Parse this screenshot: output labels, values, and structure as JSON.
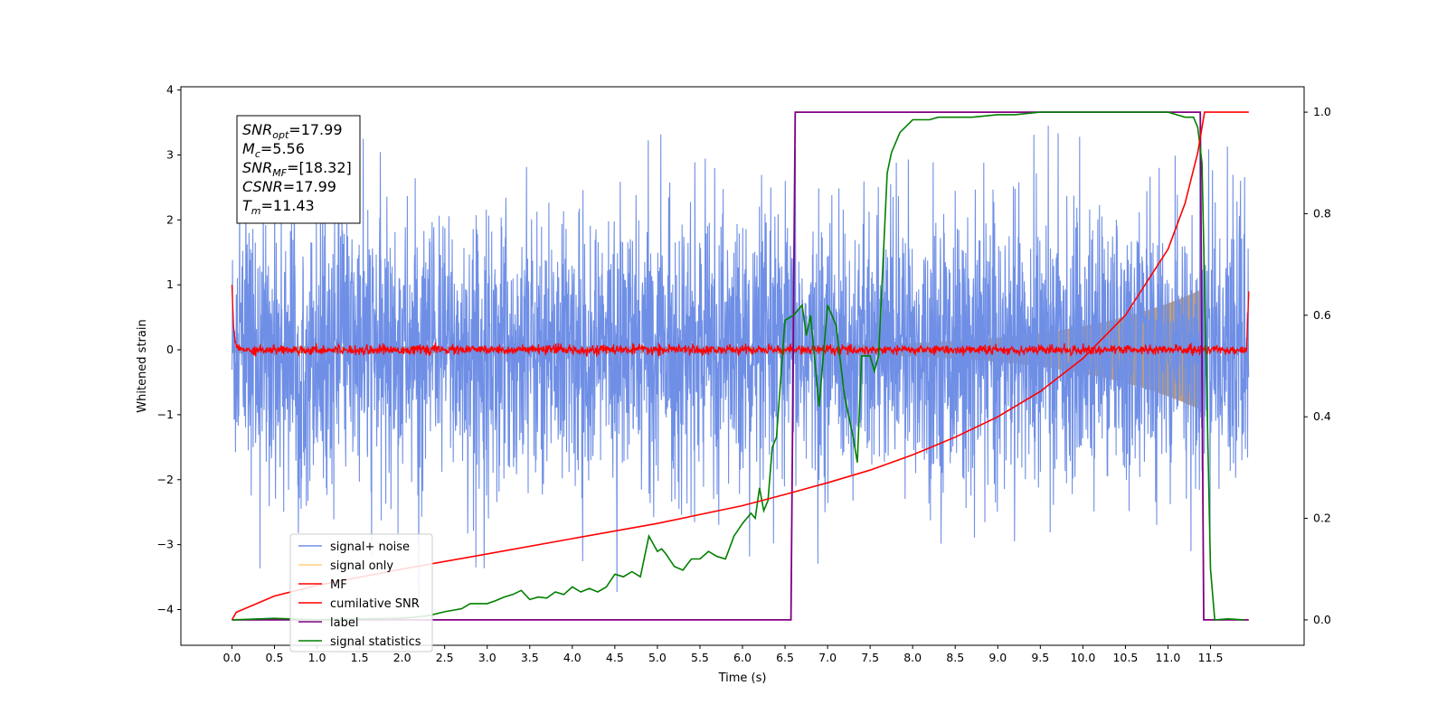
{
  "chart_data": {
    "type": "line",
    "xlabel": "Time (s)",
    "ylabel": "Whitened strain",
    "xlim": [
      -0.6,
      12.6
    ],
    "ylim": [
      -4.55,
      4.05
    ],
    "y2lim": [
      -0.05,
      1.05
    ],
    "xticks": [
      0.0,
      0.5,
      1.0,
      1.5,
      2.0,
      2.5,
      3.0,
      3.5,
      4.0,
      4.5,
      5.0,
      5.5,
      6.0,
      6.5,
      7.0,
      7.5,
      8.0,
      8.5,
      9.0,
      9.5,
      10.0,
      10.5,
      11.0,
      11.5
    ],
    "xtick_labels": [
      "0.0",
      "0.5",
      "1.0",
      "1.5",
      "2.0",
      "2.5",
      "3.0",
      "3.5",
      "4.0",
      "4.5",
      "5.0",
      "5.5",
      "6.0",
      "6.5",
      "7.0",
      "7.5",
      "8.0",
      "8.5",
      "9.0",
      "9.5",
      "10.0",
      "10.5",
      "11.0",
      "11.5"
    ],
    "yticks": [
      -4,
      -3,
      -2,
      -1,
      0,
      1,
      2,
      3,
      4
    ],
    "ytick_labels": [
      "−4",
      "−3",
      "−2",
      "−1",
      "0",
      "1",
      "2",
      "3",
      "4"
    ],
    "y2ticks": [
      0.0,
      0.2,
      0.4,
      0.6,
      0.8,
      1.0
    ],
    "y2tick_labels": [
      "0.0",
      "0.2",
      "0.4",
      "0.6",
      "0.8",
      "1.0"
    ],
    "legend_position": "lower-left",
    "info_box": [
      {
        "base": "SNR",
        "sub": "opt",
        "rest": "=17.99"
      },
      {
        "base": "M",
        "sub": "c",
        "rest": "=5.56"
      },
      {
        "base": "SNR",
        "sub": "MF",
        "rest": "=[18.32]"
      },
      {
        "base": "CSNR",
        "sub": "",
        "rest": "=17.99"
      },
      {
        "base": "T",
        "sub": "m",
        "rest": "=11.43"
      }
    ],
    "noise_amplitude": {
      "typical": 1.6,
      "peak": 3.4
    },
    "series": [
      {
        "name": "signal+ noise",
        "color": "#6f8fe6",
        "axis": "left",
        "description": "whitened noise with embedded signal"
      },
      {
        "name": "signal only",
        "color": "#c29a6b",
        "axis": "left",
        "envelope": {
          "t_start": 0.0,
          "t_merger": 11.43,
          "t_end": 11.95,
          "amp_start": 0.05,
          "amp_merger": 0.95
        }
      },
      {
        "name": "MF",
        "color": "#ff0000",
        "axis": "left",
        "level": 0.0,
        "spread": 0.09,
        "edge_values": [
          1.0,
          0.9
        ]
      },
      {
        "name": "cumilative SNR",
        "color": "#ff0000",
        "axis": "right",
        "x": [
          0.0,
          0.05,
          0.5,
          1.0,
          2.0,
          3.0,
          4.0,
          5.0,
          6.0,
          6.5,
          7.0,
          7.5,
          8.0,
          8.5,
          9.0,
          9.5,
          10.0,
          10.5,
          11.0,
          11.2,
          11.35,
          11.43,
          11.6,
          11.95
        ],
        "y": [
          0.0,
          0.015,
          0.047,
          0.068,
          0.1,
          0.13,
          0.16,
          0.19,
          0.225,
          0.247,
          0.27,
          0.295,
          0.325,
          0.36,
          0.4,
          0.45,
          0.515,
          0.6,
          0.73,
          0.82,
          0.92,
          1.0,
          1.0,
          1.0
        ]
      },
      {
        "name": "label",
        "color": "#800080",
        "axis": "right",
        "x": [
          0.0,
          6.57,
          6.62,
          11.38,
          11.42,
          11.95
        ],
        "y": [
          0.0,
          0.0,
          1.0,
          1.0,
          0.0,
          0.0
        ]
      },
      {
        "name": "signal statistics",
        "color": "#008000",
        "axis": "right",
        "x": [
          0.0,
          0.5,
          1.0,
          1.5,
          2.0,
          2.3,
          2.5,
          2.7,
          2.8,
          3.0,
          3.1,
          3.2,
          3.3,
          3.4,
          3.5,
          3.6,
          3.7,
          3.8,
          3.9,
          4.0,
          4.1,
          4.2,
          4.3,
          4.4,
          4.5,
          4.6,
          4.7,
          4.8,
          4.9,
          5.0,
          5.05,
          5.1,
          5.2,
          5.3,
          5.4,
          5.5,
          5.6,
          5.7,
          5.8,
          5.9,
          6.0,
          6.1,
          6.15,
          6.2,
          6.25,
          6.3,
          6.35,
          6.4,
          6.5,
          6.6,
          6.7,
          6.75,
          6.8,
          6.9,
          7.0,
          7.1,
          7.2,
          7.3,
          7.35,
          7.4,
          7.5,
          7.55,
          7.6,
          7.65,
          7.7,
          7.75,
          7.85,
          8.0,
          8.1,
          8.2,
          8.3,
          8.5,
          8.7,
          9.0,
          9.2,
          9.5,
          10.0,
          10.5,
          11.0,
          11.1,
          11.2,
          11.3,
          11.35,
          11.4,
          11.45,
          11.5,
          11.55,
          11.7,
          11.9
        ],
        "y": [
          0.0,
          0.003,
          0.0,
          0.002,
          0.003,
          0.008,
          0.016,
          0.022,
          0.032,
          0.032,
          0.038,
          0.045,
          0.05,
          0.058,
          0.04,
          0.045,
          0.043,
          0.055,
          0.05,
          0.065,
          0.055,
          0.062,
          0.055,
          0.065,
          0.09,
          0.085,
          0.095,
          0.085,
          0.165,
          0.135,
          0.14,
          0.13,
          0.105,
          0.098,
          0.12,
          0.12,
          0.135,
          0.125,
          0.12,
          0.165,
          0.19,
          0.21,
          0.2,
          0.26,
          0.215,
          0.235,
          0.34,
          0.36,
          0.59,
          0.6,
          0.62,
          0.56,
          0.6,
          0.42,
          0.62,
          0.58,
          0.44,
          0.36,
          0.31,
          0.52,
          0.52,
          0.49,
          0.52,
          0.7,
          0.88,
          0.92,
          0.96,
          0.985,
          0.985,
          0.985,
          0.99,
          0.99,
          0.99,
          0.995,
          0.995,
          1.0,
          1.0,
          1.0,
          1.0,
          0.995,
          0.99,
          0.99,
          0.97,
          0.9,
          0.5,
          0.1,
          0.0,
          0.002,
          0.0
        ]
      }
    ]
  }
}
